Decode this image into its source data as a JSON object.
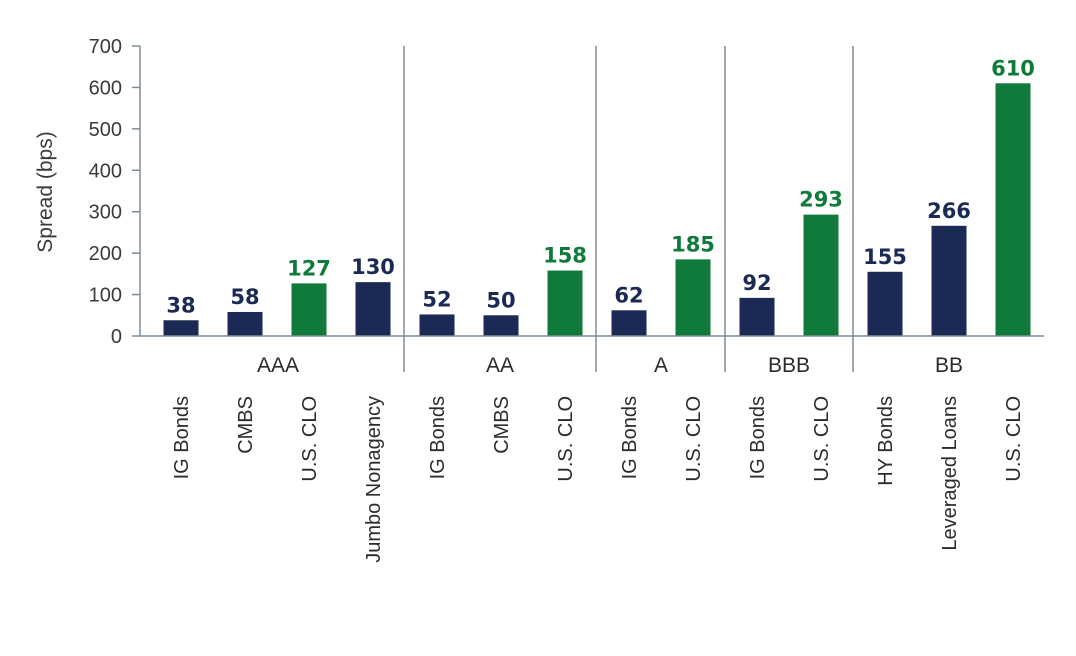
{
  "colors": {
    "navy": "#1b2a55",
    "green": "#107a3a",
    "axis": "#7f8c96",
    "text": "#2b2b2b"
  },
  "chart_data": {
    "type": "bar",
    "title": "",
    "xlabel": "",
    "ylabel": "Spread (bps)",
    "ylim": [
      0,
      700
    ],
    "yticks": [
      0,
      100,
      200,
      300,
      400,
      500,
      600,
      700
    ],
    "grid": false,
    "legend": "none",
    "groups": [
      {
        "name": "AAA",
        "bars": [
          {
            "category": "IG Bonds",
            "value": 38,
            "color": "navy"
          },
          {
            "category": "CMBS",
            "value": 58,
            "color": "navy"
          },
          {
            "category": "U.S. CLO",
            "value": 127,
            "color": "green"
          },
          {
            "category": "Jumbo Nonagency",
            "value": 130,
            "color": "navy"
          }
        ]
      },
      {
        "name": "AA",
        "bars": [
          {
            "category": "IG Bonds",
            "value": 52,
            "color": "navy"
          },
          {
            "category": "CMBS",
            "value": 50,
            "color": "navy"
          },
          {
            "category": "U.S. CLO",
            "value": 158,
            "color": "green"
          }
        ]
      },
      {
        "name": "A",
        "bars": [
          {
            "category": "IG Bonds",
            "value": 62,
            "color": "navy"
          },
          {
            "category": "U.S. CLO",
            "value": 185,
            "color": "green"
          }
        ]
      },
      {
        "name": "BBB",
        "bars": [
          {
            "category": "IG Bonds",
            "value": 92,
            "color": "navy"
          },
          {
            "category": "U.S. CLO",
            "value": 293,
            "color": "green"
          }
        ]
      },
      {
        "name": "BB",
        "bars": [
          {
            "category": "HY Bonds",
            "value": 155,
            "color": "navy"
          },
          {
            "category": "Leveraged Loans",
            "value": 266,
            "color": "navy"
          },
          {
            "category": "U.S. CLO",
            "value": 610,
            "color": "green"
          }
        ]
      }
    ]
  }
}
